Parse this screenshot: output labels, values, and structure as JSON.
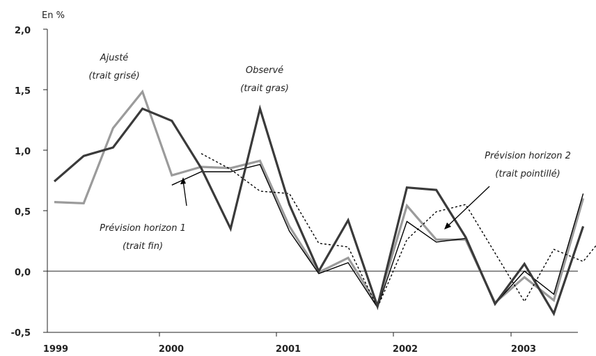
{
  "chart_data": {
    "type": "line",
    "unit_label": "En %",
    "ylim": [
      -0.5,
      2.0
    ],
    "y_ticks": [
      "2,0",
      "1,5",
      "1,0",
      "0,5",
      "0,0",
      "-0,5"
    ],
    "x_year_labels": [
      "1999",
      "2000",
      "2001",
      "2002",
      "2003"
    ],
    "x_quarter_indices": [
      0,
      1,
      2,
      3,
      4,
      5,
      6,
      7,
      8,
      9,
      10,
      11,
      12,
      13,
      14,
      15,
      16,
      17,
      18,
      19
    ],
    "series": [
      {
        "key": "observe",
        "color": "#3a3a3a",
        "values": [
          0.74,
          0.95,
          1.02,
          1.34,
          1.24,
          0.85,
          0.35,
          1.34,
          0.55,
          0.0,
          0.42,
          -0.29,
          0.69,
          0.67,
          0.28,
          -0.27,
          0.06,
          -0.35,
          0.37,
          null
        ],
        "partial": [
          0.74,
          0.95,
          1.02,
          1.34,
          1.24,
          0.85,
          0.35,
          1.34,
          0.55,
          0.0,
          0.42,
          -0.29,
          0.69,
          0.67,
          0.28,
          -0.27,
          0.06,
          -0.35,
          0.37
        ]
      },
      {
        "key": "ajuste",
        "color": "#9b9b9b",
        "values": [
          0.57,
          0.56,
          1.18,
          1.48,
          0.79,
          0.86,
          0.85,
          0.91,
          0.37,
          -0.01,
          0.11,
          -0.28,
          0.54,
          0.26,
          0.26,
          -0.26,
          -0.05,
          -0.24,
          0.6
        ]
      },
      {
        "key": "horizon1",
        "color": "#000000",
        "start": 4,
        "values": [
          0.71,
          0.82,
          0.82,
          0.88,
          0.33,
          -0.02,
          0.07,
          -0.3,
          0.41,
          0.24,
          0.27,
          -0.27,
          0.0,
          -0.19,
          0.64
        ]
      },
      {
        "key": "horizon2",
        "color": "#000000",
        "dashed": true,
        "start": 5,
        "values": [
          0.97,
          0.84,
          0.66,
          0.64,
          0.23,
          0.2,
          -0.3,
          0.26,
          0.49,
          0.55,
          0.15,
          -0.25,
          0.18,
          0.08,
          0.38
        ]
      }
    ],
    "annotations": {
      "ajuste_line1": "Ajusté",
      "ajuste_line2": "(trait grisé)",
      "observe_line1": "Observé",
      "observe_line2": "(trait gras)",
      "h1_line1": "Prévision horizon 1",
      "h1_line2": "(trait fin)",
      "h2_line1": "Prévision horizon 2",
      "h2_line2": "(trait pointillé)"
    }
  }
}
